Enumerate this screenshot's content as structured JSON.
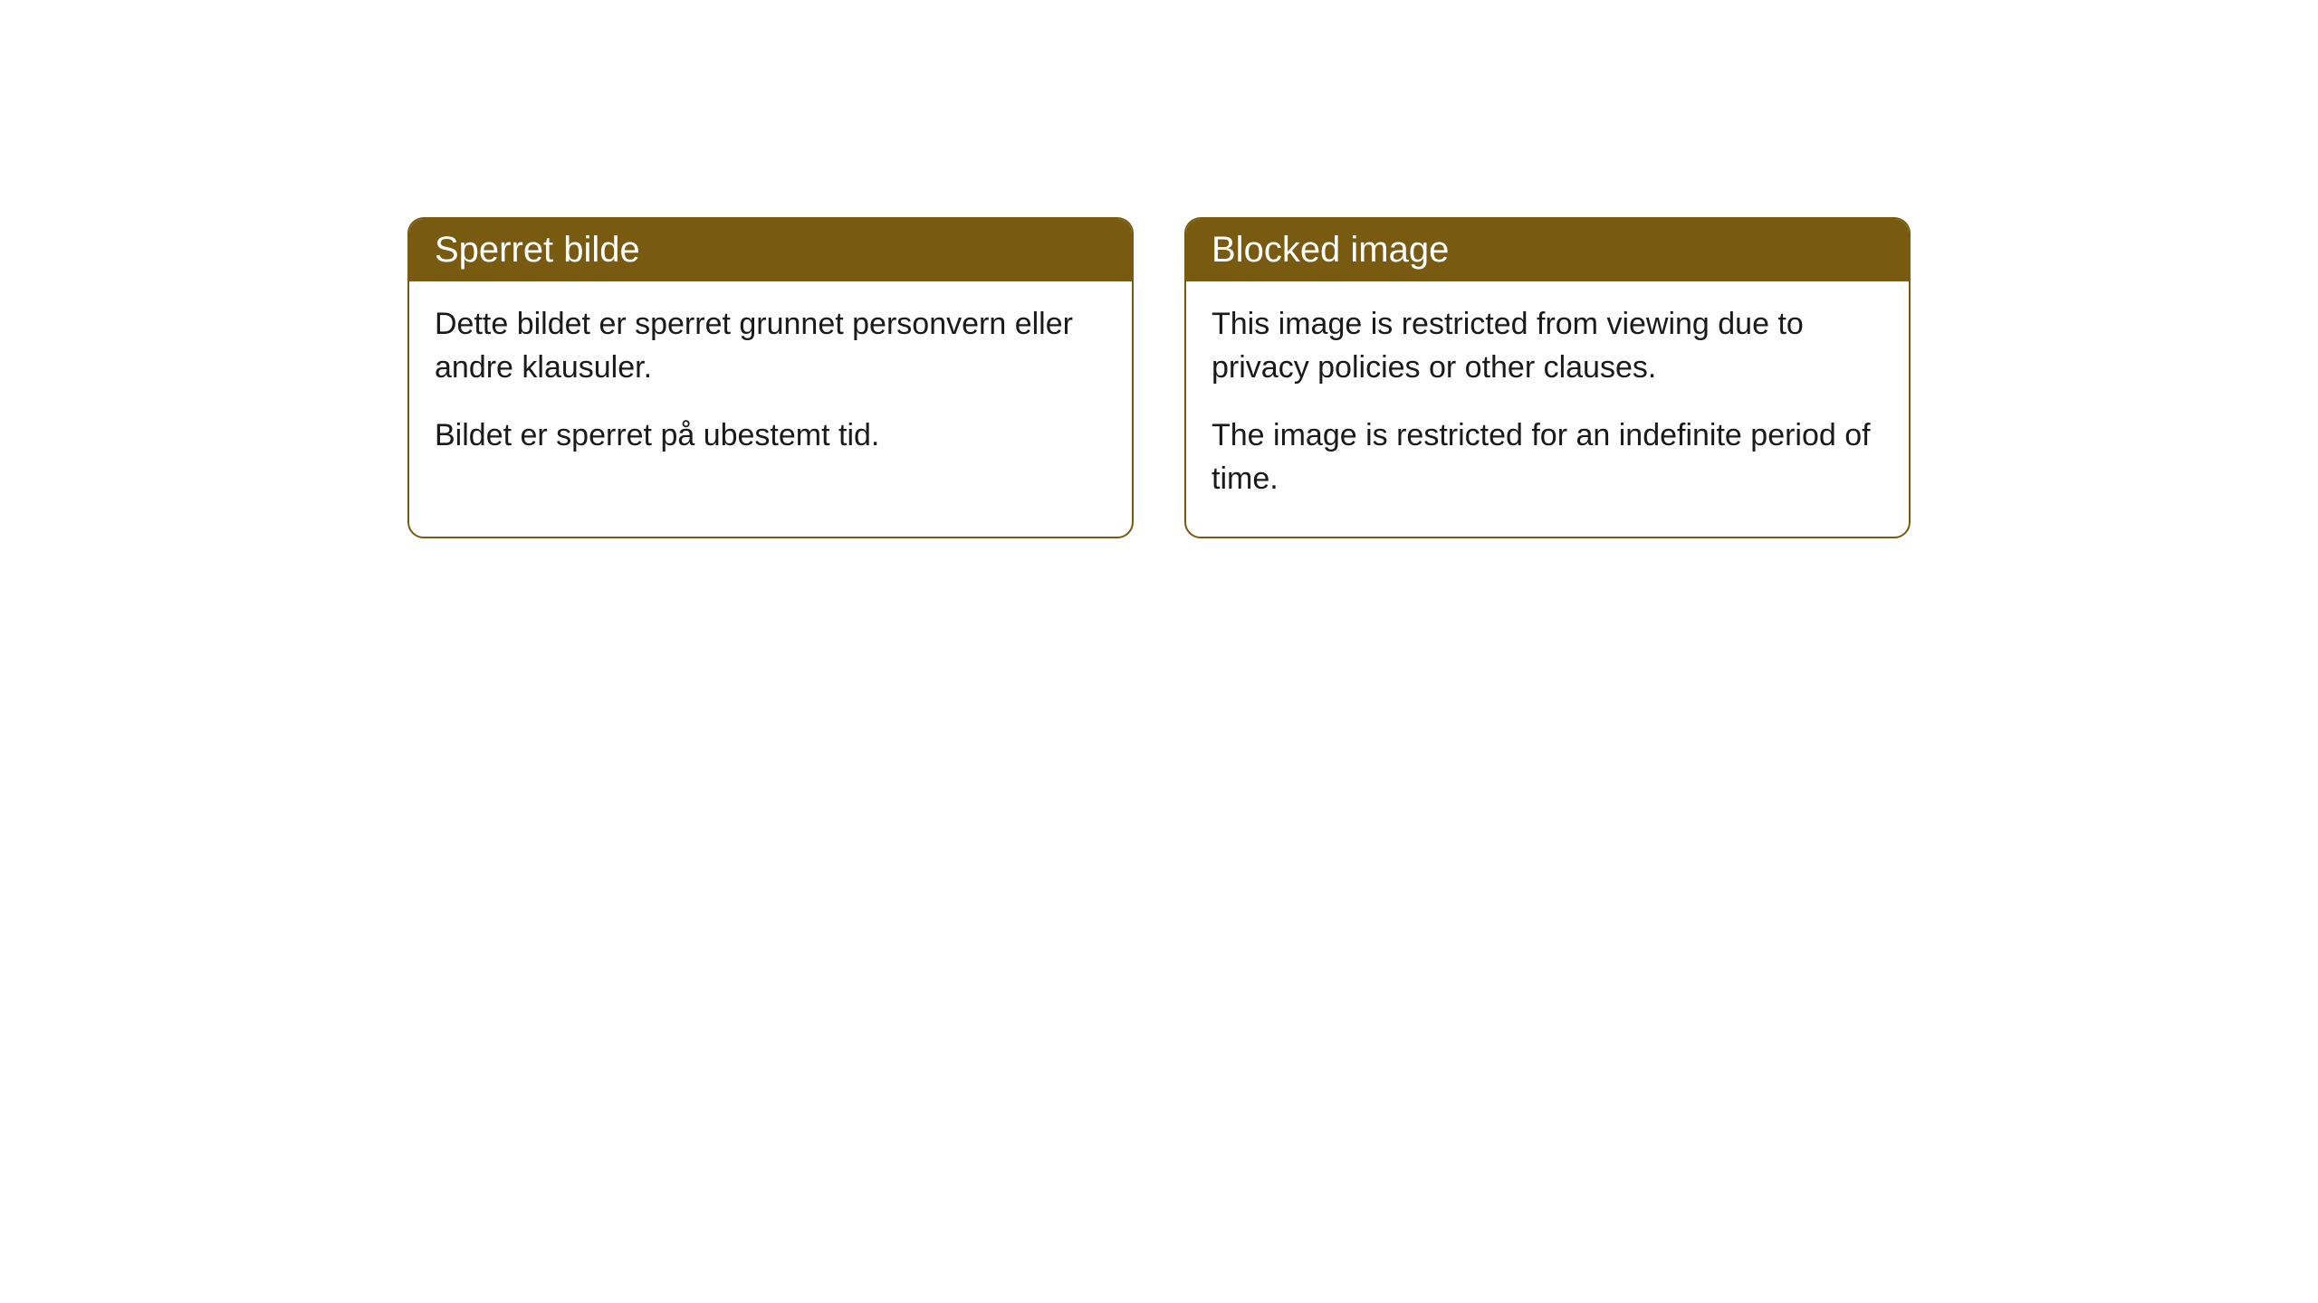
{
  "cards": [
    {
      "title": "Sperret bilde",
      "paragraph1": "Dette bildet er sperret grunnet personvern eller andre klausuler.",
      "paragraph2": "Bildet er sperret på ubestemt tid."
    },
    {
      "title": "Blocked image",
      "paragraph1": "This image is restricted from viewing due to privacy policies or other clauses.",
      "paragraph2": "The image is restricted for an indefinite period of time."
    }
  ],
  "styling": {
    "header_bg_color": "#785b10",
    "header_text_color": "#ffffff",
    "border_color": "#785b10",
    "body_bg_color": "#ffffff",
    "body_text_color": "#1a1a1a",
    "border_radius": 18,
    "title_fontsize": 40,
    "body_fontsize": 34
  }
}
